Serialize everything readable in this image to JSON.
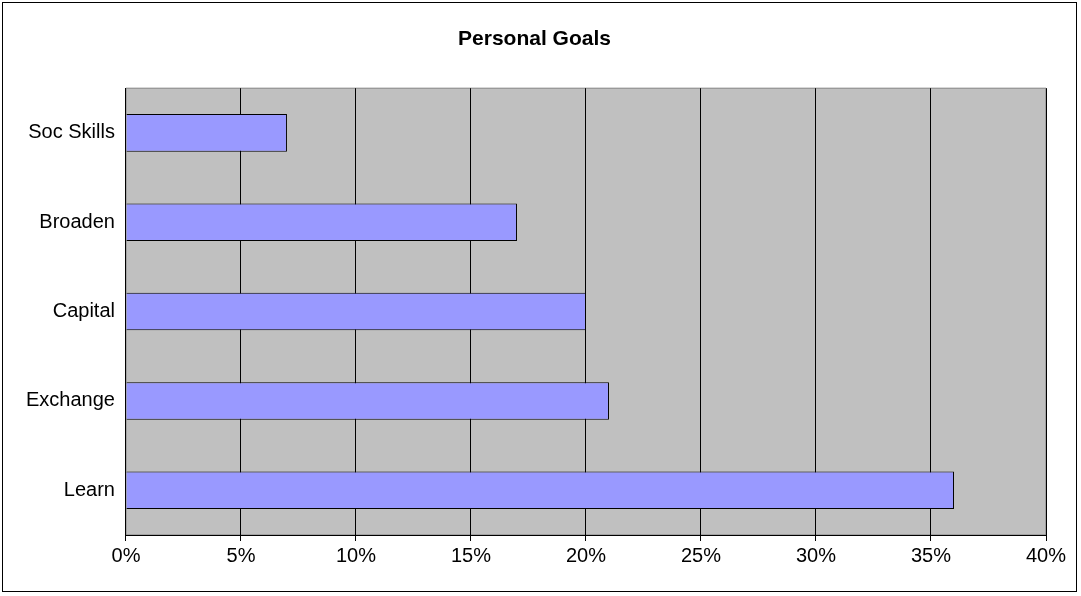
{
  "chart_data": {
    "type": "bar",
    "orientation": "horizontal",
    "title": "Personal Goals",
    "categories": [
      "Soc Skills",
      "Broaden",
      "Capital",
      "Exchange",
      "Learn"
    ],
    "values": [
      7,
      17,
      20,
      21,
      36
    ],
    "color": "#9999ff",
    "xlim": [
      0,
      40
    ],
    "xticks": [
      {
        "value": 0,
        "label": "0%"
      },
      {
        "value": 5,
        "label": "5%"
      },
      {
        "value": 10,
        "label": "10%"
      },
      {
        "value": 15,
        "label": "15%"
      },
      {
        "value": 20,
        "label": "20%"
      },
      {
        "value": 25,
        "label": "25%"
      },
      {
        "value": 30,
        "label": "30%"
      },
      {
        "value": 35,
        "label": "35%"
      },
      {
        "value": 40,
        "label": "40%"
      }
    ],
    "grid": "x"
  }
}
